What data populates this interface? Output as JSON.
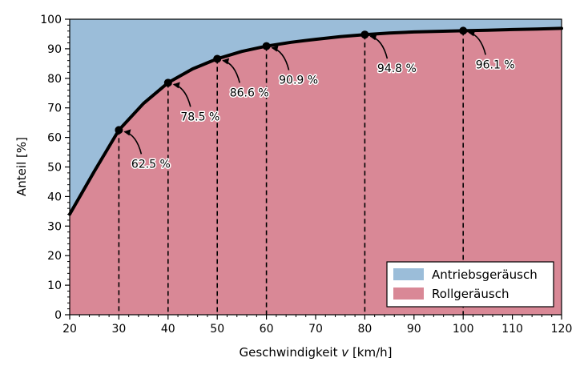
{
  "chart_data": {
    "type": "area",
    "xlabel": "Geschwindigkeit",
    "xlabel_var": "v",
    "xlabel_unit": "[km/h]",
    "ylabel": "Anteil [%]",
    "xlim": [
      20,
      120
    ],
    "ylim": [
      0,
      100
    ],
    "x_ticks": [
      20,
      30,
      40,
      50,
      60,
      70,
      80,
      90,
      100,
      110,
      120
    ],
    "y_ticks": [
      0,
      10,
      20,
      30,
      40,
      50,
      60,
      70,
      80,
      90,
      100
    ],
    "series": [
      {
        "name": "Antriebsgeräusch",
        "color": "#9bbdd9",
        "fill": "above-curve"
      },
      {
        "name": "Rollgeräusch",
        "color": "#d98896",
        "fill": "below-curve"
      }
    ],
    "curve_color": "#000000",
    "curve": {
      "x": [
        20,
        25,
        30,
        35,
        40,
        45,
        50,
        55,
        60,
        65,
        70,
        75,
        80,
        85,
        90,
        95,
        100,
        105,
        110,
        115,
        120
      ],
      "y": [
        34.0,
        48.5,
        62.5,
        71.5,
        78.5,
        83.2,
        86.6,
        89.1,
        90.9,
        92.2,
        93.2,
        94.1,
        94.8,
        95.3,
        95.7,
        95.9,
        96.1,
        96.3,
        96.5,
        96.7,
        96.9
      ]
    },
    "annotations": [
      {
        "x": 30,
        "y": 62.5,
        "label": "62.5 %"
      },
      {
        "x": 40,
        "y": 78.5,
        "label": "78.5 %"
      },
      {
        "x": 50,
        "y": 86.6,
        "label": "86.6 %"
      },
      {
        "x": 60,
        "y": 90.9,
        "label": "90.9 %"
      },
      {
        "x": 80,
        "y": 94.8,
        "label": "94.8 %"
      },
      {
        "x": 100,
        "y": 96.1,
        "label": "96.1 %"
      }
    ],
    "legend": {
      "position": "bottom-right"
    }
  }
}
